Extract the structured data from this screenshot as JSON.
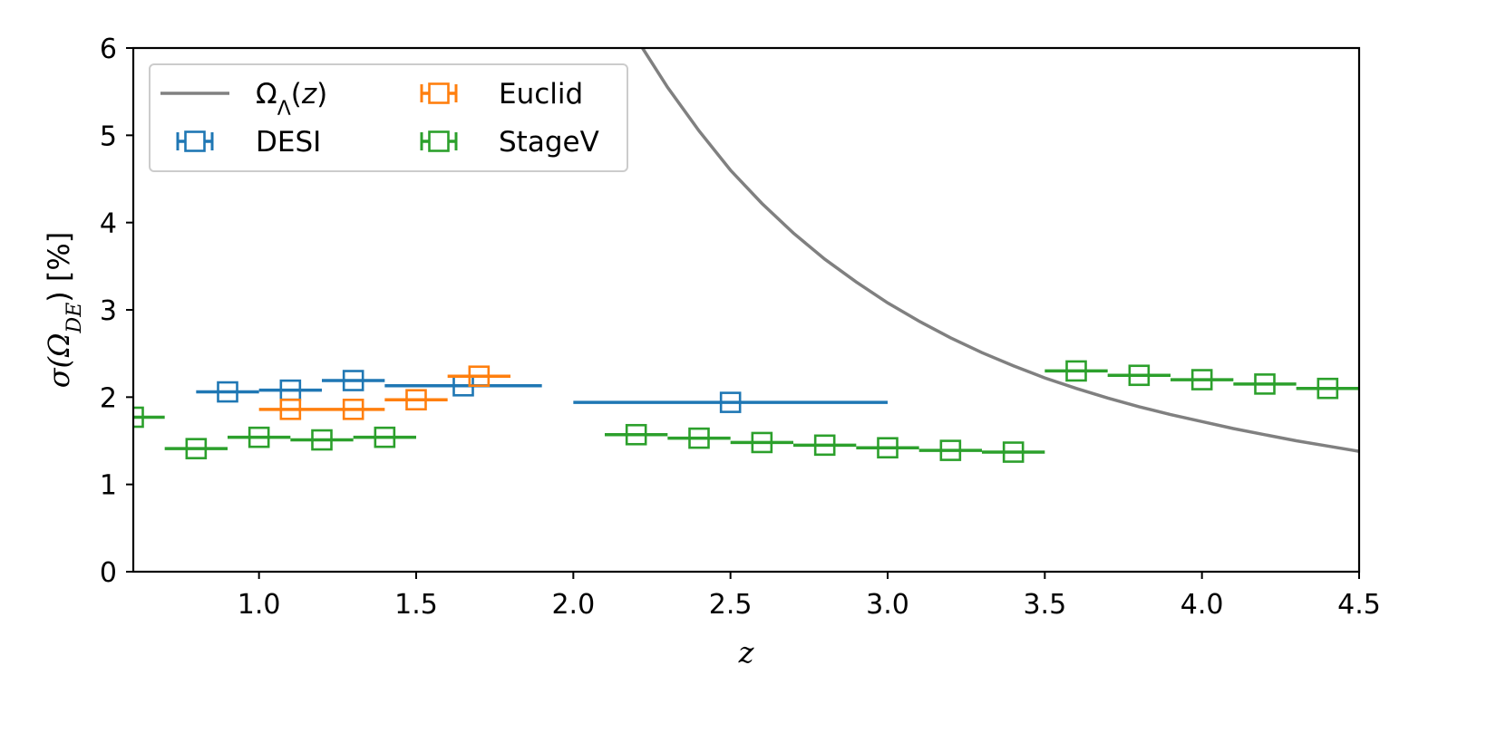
{
  "chart_data": {
    "type": "scatter",
    "xlabel": "z",
    "ylabel": "σ(Ω_DE) [%]",
    "xlim": [
      0.6,
      4.5
    ],
    "ylim": [
      0,
      6
    ],
    "xticks": [
      "1.0",
      "1.5",
      "2.0",
      "2.5",
      "3.0",
      "3.5",
      "4.0",
      "4.5"
    ],
    "xtick_values": [
      1.0,
      1.5,
      2.0,
      2.5,
      3.0,
      3.5,
      4.0,
      4.5
    ],
    "yticks": [
      "0",
      "1",
      "2",
      "3",
      "4",
      "5",
      "6"
    ],
    "ytick_values": [
      0,
      1,
      2,
      3,
      4,
      5,
      6
    ],
    "grid": false,
    "legend_position": "top-left",
    "legend": [
      {
        "label": "Ω_Λ(z)",
        "kind": "line",
        "color": "#808080"
      },
      {
        "label": "DESI",
        "kind": "marker",
        "color": "#1f77b4"
      },
      {
        "label": "Euclid",
        "kind": "marker",
        "color": "#ff7f0e"
      },
      {
        "label": "StageV",
        "kind": "marker",
        "color": "#2ca02c"
      }
    ],
    "curve": {
      "name": "Ω_Λ(z)",
      "color": "#808080",
      "x": [
        2.22,
        2.3,
        2.4,
        2.5,
        2.6,
        2.7,
        2.8,
        2.9,
        3.0,
        3.1,
        3.2,
        3.3,
        3.4,
        3.5,
        3.6,
        3.7,
        3.8,
        3.9,
        4.0,
        4.1,
        4.2,
        4.3,
        4.4,
        4.5
      ],
      "y": [
        6.0,
        5.55,
        5.05,
        4.6,
        4.22,
        3.88,
        3.58,
        3.32,
        3.08,
        2.87,
        2.68,
        2.51,
        2.36,
        2.22,
        2.1,
        1.99,
        1.89,
        1.8,
        1.72,
        1.64,
        1.57,
        1.5,
        1.44,
        1.38
      ]
    },
    "series": [
      {
        "name": "DESI",
        "color": "#1f77b4",
        "x": [
          0.9,
          1.1,
          1.3,
          1.65,
          2.5
        ],
        "y": [
          2.06,
          2.08,
          2.19,
          2.13,
          1.94
        ],
        "xerr": [
          0.1,
          0.1,
          0.1,
          0.25,
          0.5
        ]
      },
      {
        "name": "Euclid",
        "color": "#ff7f0e",
        "x": [
          1.1,
          1.3,
          1.5,
          1.7
        ],
        "y": [
          1.86,
          1.86,
          1.97,
          2.24
        ],
        "xerr": [
          0.1,
          0.1,
          0.1,
          0.1
        ]
      },
      {
        "name": "StageV",
        "color": "#2ca02c",
        "x": [
          0.6,
          0.8,
          1.0,
          1.2,
          1.4,
          2.2,
          2.4,
          2.6,
          2.8,
          3.0,
          3.2,
          3.4,
          3.6,
          3.8,
          4.0,
          4.2,
          4.4
        ],
        "y": [
          1.77,
          1.41,
          1.54,
          1.51,
          1.54,
          1.57,
          1.53,
          1.48,
          1.45,
          1.42,
          1.39,
          1.37,
          2.3,
          2.25,
          2.2,
          2.15,
          2.1
        ],
        "xerr": [
          0.1,
          0.1,
          0.1,
          0.1,
          0.1,
          0.1,
          0.1,
          0.1,
          0.1,
          0.1,
          0.1,
          0.1,
          0.1,
          0.1,
          0.1,
          0.1,
          0.1
        ]
      }
    ]
  }
}
